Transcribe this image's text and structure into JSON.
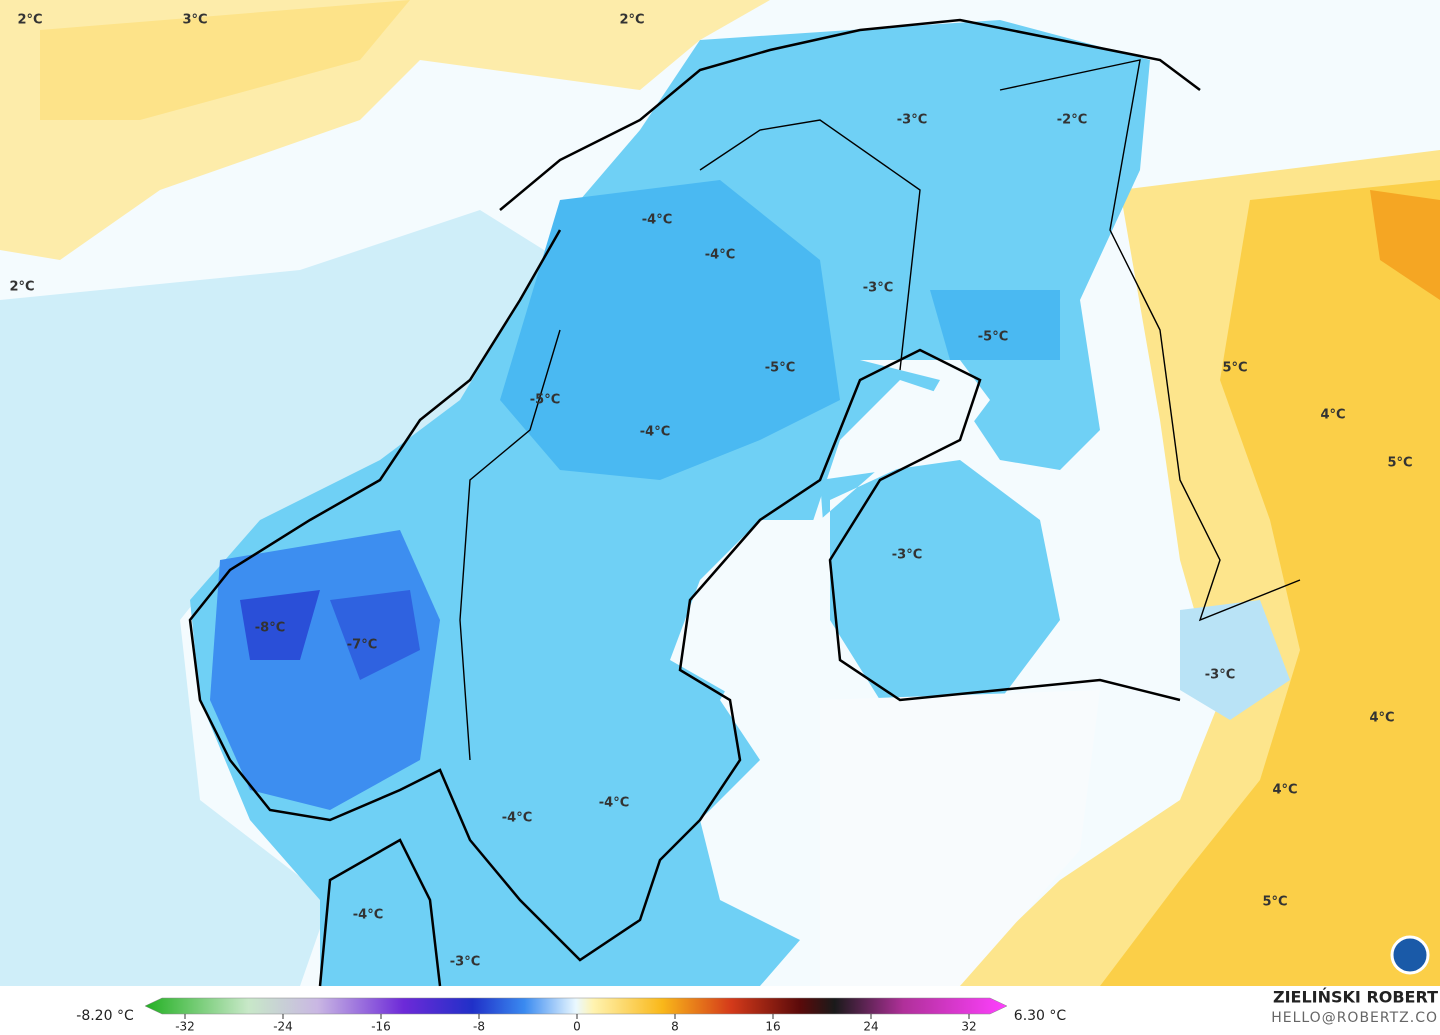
{
  "map_labels": [
    "2°C",
    "3°C",
    "2°C",
    "2°C",
    "-3°C",
    "-2°C",
    "-4°C",
    "-4°C",
    "-3°C",
    "-5°C",
    "-5°C",
    "5°C",
    "-5°C",
    "4°C",
    "-4°C",
    "5°C",
    "-3°C",
    "-8°C",
    "-7°C",
    "-3°C",
    "4°C",
    "4°C",
    "-4°C",
    "-4°C",
    "5°C",
    "-4°C",
    "-3°C"
  ],
  "colorbar": {
    "min_label": "-8.20 °C",
    "max_label": "6.30 °C",
    "ticks": [
      -32,
      -24,
      -16,
      -8,
      0,
      8,
      16,
      24,
      32
    ]
  },
  "credits": {
    "author": "ZIELIŃSKI ROBERT",
    "contact": "HELLO@ROBERTZ.CO"
  }
}
